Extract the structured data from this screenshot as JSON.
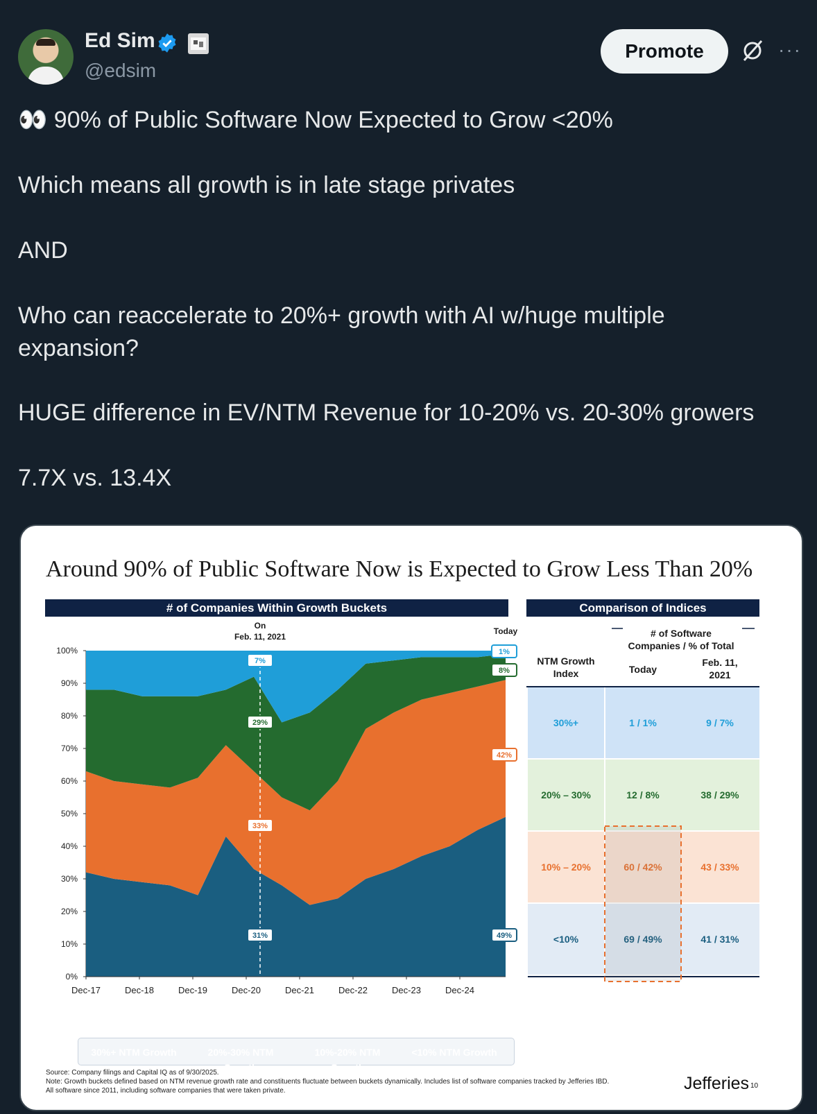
{
  "header": {
    "name": "Ed Sim",
    "handle": "@edsim",
    "promote_label": "Promote",
    "more_label": "···",
    "icons": [
      "verified-icon",
      "flag-icon",
      "grok-icon",
      "more-icon"
    ]
  },
  "tweet": {
    "line1": "👀 90% of Public Software Now Expected to Grow <20%",
    "line2": "Which means all growth is in late stage privates",
    "line3": "AND",
    "line4": "Who can reaccelerate to 20%+ growth with AI w/huge multiple expansion?",
    "line5": "HUGE difference in EV/NTM Revenue for 10-20% vs. 20-30% growers",
    "line6": "7.7X vs. 13.4X"
  },
  "chart_card": {
    "title": "Around 90% of Public Software Now is Expected to Grow Less Than 20%",
    "left_header": "# of Companies Within Growth Buckets",
    "right_header": "Comparison of Indices",
    "on_label": "On",
    "on_date": "Feb. 11, 2021",
    "today_label": "Today",
    "source": "Source: Company filings and Capital IQ as of 9/30/2025.",
    "note1": "Note: Growth buckets defined based on NTM revenue growth rate and constituents fluctuate between buckets dynamically. Includes list of software companies tracked by Jefferies IBD.",
    "note2": "All software since 2011, including software companies that were taken private.",
    "brand": "Jefferies",
    "page_num": "10",
    "legend": [
      "30%+ NTM Growth",
      "20%-30% NTM Growth",
      "10%-20% NTM Growth",
      "<10% NTM Growth"
    ]
  },
  "chart_data": {
    "type": "area",
    "stacked": true,
    "title": "# of Companies Within Growth Buckets",
    "x": [
      "Dec-17",
      "Jun-18",
      "Dec-18",
      "Jun-19",
      "Dec-19",
      "Jun-20",
      "Dec-20",
      "Jun-21",
      "Dec-21",
      "Jun-22",
      "Dec-22",
      "Jun-23",
      "Dec-23",
      "Jun-24",
      "Dec-24",
      "Sep-25"
    ],
    "xticks": [
      "Dec-17",
      "Dec-18",
      "Dec-19",
      "Dec-20",
      "Dec-21",
      "Dec-22",
      "Dec-23",
      "Dec-24"
    ],
    "yticks": [
      "0%",
      "10%",
      "20%",
      "30%",
      "40%",
      "50%",
      "60%",
      "70%",
      "80%",
      "90%",
      "100%"
    ],
    "ylim": [
      0,
      100
    ],
    "series": [
      {
        "name": "<10% NTM Growth",
        "color": "#1a5e80",
        "values": [
          32,
          30,
          29,
          28,
          25,
          43,
          33,
          28,
          22,
          24,
          30,
          33,
          37,
          40,
          45,
          49
        ]
      },
      {
        "name": "10%-20% NTM Growth",
        "color": "#e8702e",
        "values": [
          31,
          30,
          30,
          30,
          36,
          28,
          30,
          27,
          29,
          36,
          46,
          48,
          48,
          47,
          44,
          42
        ]
      },
      {
        "name": "20%-30% NTM Growth",
        "color": "#246b2f",
        "values": [
          25,
          28,
          27,
          28,
          25,
          17,
          29,
          23,
          30,
          28,
          20,
          16,
          13,
          11,
          9,
          8
        ]
      },
      {
        "name": "30%+ NTM Growth",
        "color": "#1f9ed8",
        "values": [
          12,
          12,
          14,
          14,
          14,
          12,
          8,
          22,
          19,
          12,
          4,
          3,
          2,
          2,
          2,
          1
        ]
      }
    ],
    "callouts_feb_2021": {
      "30%+": "7%",
      "20%-30%": "29%",
      "10%-20%": "33%",
      "<10%": "31%"
    },
    "callouts_today": {
      "30%+": "1%",
      "20%-30%": "8%",
      "10%-20%": "42%",
      "<10%": "49%"
    }
  },
  "comparison_table": {
    "col_index": "NTM Growth Index",
    "col_span": "# of Software Companies / % of Total",
    "col_today": "Today",
    "col_feb": "Feb. 11, 2021",
    "rows": [
      {
        "bucket": "30%+",
        "today": "1 / 1%",
        "feb": "9 / 7%",
        "bg": "#cfe3f7"
      },
      {
        "bucket": "20% – 30%",
        "today": "12 / 8%",
        "feb": "38 / 29%",
        "bg": "#e3f1dc"
      },
      {
        "bucket": "10% – 20%",
        "today": "60 / 42%",
        "feb": "43 / 33%",
        "bg": "#fbe3d4"
      },
      {
        "bucket": "<10%",
        "today": "69 / 49%",
        "feb": "41 / 31%",
        "bg": "#e2ebf5"
      }
    ],
    "row_text_colors": [
      "#1f9ed8",
      "#246b2f",
      "#e8702e",
      "#1a5e80"
    ]
  }
}
